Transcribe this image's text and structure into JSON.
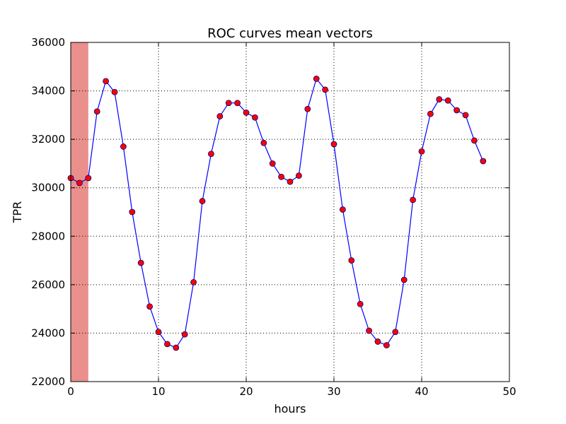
{
  "chart_data": {
    "type": "line",
    "title": "ROC curves mean vectors",
    "xlabel": "hours",
    "ylabel": "TPR",
    "xlim": [
      0,
      50
    ],
    "ylim": [
      22000,
      36000
    ],
    "xticks": [
      "0",
      "10",
      "20",
      "30",
      "40",
      "50"
    ],
    "yticks": [
      "22000",
      "24000",
      "26000",
      "28000",
      "30000",
      "32000",
      "34000",
      "36000"
    ],
    "grid": true,
    "shaded_span": {
      "x": [
        0,
        2
      ],
      "color": "#e98f8c"
    },
    "line_color": "#0000ff",
    "marker_color": "#ff0000",
    "series": [
      {
        "x": [
          0,
          1,
          2,
          3,
          4,
          5,
          6,
          7,
          8,
          9,
          10,
          11,
          12,
          13,
          14,
          15,
          16,
          17,
          18,
          19,
          20,
          21,
          22,
          23,
          24,
          25,
          26,
          27,
          28,
          29,
          30,
          31,
          32,
          33,
          34,
          35,
          36,
          37,
          38,
          39,
          40,
          41,
          42,
          43,
          44,
          45,
          46,
          47
        ],
        "values": [
          30400,
          30200,
          30400,
          33150,
          34400,
          33950,
          31700,
          29000,
          26900,
          25100,
          24050,
          23550,
          23400,
          23950,
          26100,
          29450,
          31400,
          32950,
          33500,
          33500,
          33100,
          32900,
          31850,
          31000,
          30450,
          30250,
          30500,
          33250,
          34500,
          34050,
          31800,
          29100,
          27000,
          25200,
          24100,
          23650,
          23500,
          24050,
          26200,
          29500,
          31500,
          33050,
          33650,
          33600,
          33200,
          33000,
          31950,
          31100
        ]
      }
    ]
  }
}
